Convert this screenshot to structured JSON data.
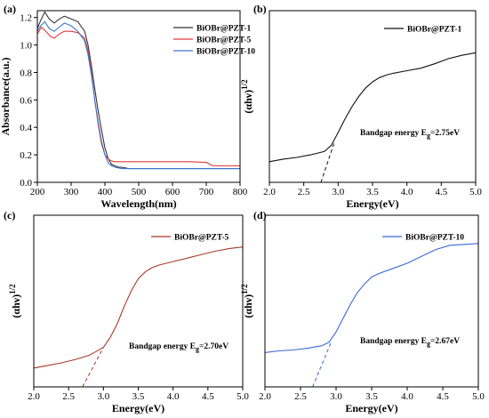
{
  "chart_data": [
    {
      "panel": "(a)",
      "type": "line",
      "xlabel": "Wavelength(nm)",
      "ylabel": "Absorbance(a.u.)",
      "xlim": [
        200,
        800
      ],
      "ylim": [
        0.0,
        1.25
      ],
      "xticks": [
        "200",
        "300",
        "400",
        "500",
        "600",
        "700",
        "800"
      ],
      "yticks": [
        "0.0",
        "0.2",
        "0.4",
        "0.6",
        "0.8",
        "1.0",
        "1.2"
      ],
      "legend_position": "top-right",
      "series": [
        {
          "name": "BiOBr@PZT-1",
          "color": "#333333",
          "x": [
            200,
            210,
            222,
            235,
            250,
            265,
            280,
            300,
            320,
            340,
            350,
            360,
            370,
            380,
            390,
            400,
            410,
            420,
            430,
            440,
            450,
            470,
            500,
            550,
            600,
            650,
            700,
            750,
            800
          ],
          "y": [
            1.12,
            1.18,
            1.24,
            1.19,
            1.16,
            1.19,
            1.21,
            1.19,
            1.17,
            1.1,
            1.0,
            0.85,
            0.68,
            0.52,
            0.38,
            0.25,
            0.17,
            0.13,
            0.12,
            0.11,
            0.11,
            0.1,
            0.1,
            0.1,
            0.1,
            0.1,
            0.1,
            0.1,
            0.1
          ]
        },
        {
          "name": "BiOBr@PZT-5",
          "color": "#e03a3a",
          "x": [
            200,
            212,
            225,
            240,
            250,
            265,
            280,
            300,
            320,
            340,
            350,
            360,
            370,
            380,
            390,
            400,
            410,
            420,
            430,
            440,
            450,
            470,
            500,
            550,
            600,
            650,
            700,
            720,
            750,
            800
          ],
          "y": [
            1.08,
            1.13,
            1.1,
            1.06,
            1.05,
            1.08,
            1.1,
            1.1,
            1.09,
            1.05,
            0.96,
            0.8,
            0.6,
            0.42,
            0.28,
            0.2,
            0.17,
            0.155,
            0.15,
            0.15,
            0.15,
            0.15,
            0.15,
            0.15,
            0.15,
            0.15,
            0.145,
            0.12,
            0.12,
            0.12
          ]
        },
        {
          "name": "BiOBr@PZT-10",
          "color": "#3a78d0",
          "x": [
            200,
            210,
            222,
            235,
            250,
            265,
            280,
            300,
            320,
            340,
            350,
            360,
            370,
            380,
            390,
            400,
            410,
            420,
            430,
            440,
            450,
            470,
            500,
            550,
            600,
            650,
            700,
            750,
            800
          ],
          "y": [
            1.1,
            1.14,
            1.17,
            1.12,
            1.1,
            1.13,
            1.16,
            1.14,
            1.1,
            1.03,
            0.93,
            0.78,
            0.6,
            0.44,
            0.3,
            0.2,
            0.14,
            0.12,
            0.11,
            0.105,
            0.1,
            0.1,
            0.1,
            0.1,
            0.1,
            0.1,
            0.1,
            0.1,
            0.1
          ]
        }
      ]
    },
    {
      "panel": "(b)",
      "type": "line",
      "xlabel": "Energy(eV)",
      "ylabel": "(αhν)",
      "ylabel_sup": "1/2",
      "xlim": [
        2.0,
        5.0
      ],
      "ylim": [
        0,
        1.0
      ],
      "xticks": [
        "2.0",
        "2.5",
        "3.0",
        "3.5",
        "4.0",
        "4.5",
        "5.0"
      ],
      "yticks": [],
      "legend_position": "top-right",
      "annotation": {
        "prefix": "Bandgap energy E",
        "sub": "g",
        "suffix": "=2.75eV",
        "bandgap": 2.75
      },
      "series": [
        {
          "name": "BiOBr@PZT-1",
          "color": "#111111",
          "x": [
            2.0,
            2.2,
            2.4,
            2.6,
            2.8,
            2.9,
            3.0,
            3.1,
            3.2,
            3.3,
            3.4,
            3.5,
            3.6,
            3.7,
            3.8,
            4.0,
            4.2,
            4.4,
            4.6,
            4.8,
            5.0
          ],
          "y": [
            0.12,
            0.135,
            0.145,
            0.16,
            0.18,
            0.215,
            0.29,
            0.37,
            0.44,
            0.5,
            0.55,
            0.585,
            0.61,
            0.625,
            0.635,
            0.65,
            0.665,
            0.69,
            0.72,
            0.74,
            0.755
          ]
        }
      ],
      "tangent": {
        "x": [
          2.75,
          2.95
        ],
        "y": [
          0.0,
          0.24
        ]
      }
    },
    {
      "panel": "(c)",
      "type": "line",
      "xlabel": "Energy(eV)",
      "ylabel": "(αhν)",
      "ylabel_sup": "1/2",
      "xlim": [
        2.0,
        5.0
      ],
      "ylim": [
        0,
        1.0
      ],
      "xticks": [
        "2.0",
        "2.5",
        "3.0",
        "3.5",
        "4.0",
        "4.5",
        "5.0"
      ],
      "yticks": [],
      "legend_position": "top-right",
      "annotation": {
        "prefix": "Bandgap energy E",
        "sub": "g",
        "suffix": "=2.70eV",
        "bandgap": 2.7
      },
      "series": [
        {
          "name": "BiOBr@PZT-5",
          "color": "#a83a28",
          "x": [
            2.0,
            2.2,
            2.4,
            2.6,
            2.8,
            3.0,
            3.1,
            3.2,
            3.3,
            3.4,
            3.5,
            3.6,
            3.7,
            3.8,
            4.0,
            4.2,
            4.4,
            4.6,
            4.8,
            5.0
          ],
          "y": [
            0.11,
            0.125,
            0.14,
            0.16,
            0.185,
            0.23,
            0.29,
            0.37,
            0.47,
            0.56,
            0.63,
            0.67,
            0.695,
            0.71,
            0.73,
            0.75,
            0.77,
            0.79,
            0.805,
            0.815
          ]
        }
      ],
      "tangent": {
        "x": [
          2.7,
          3.0
        ],
        "y": [
          0.0,
          0.23
        ]
      }
    },
    {
      "panel": "(d)",
      "type": "line",
      "xlabel": "Energy(eV)",
      "ylabel": "(αhν)",
      "ylabel_sup": "1/2",
      "xlim": [
        2.0,
        5.0
      ],
      "ylim": [
        0,
        1.0
      ],
      "xticks": [
        "2.0",
        "2.5",
        "3.0",
        "3.5",
        "4.0",
        "4.5",
        "5.0"
      ],
      "yticks": [],
      "legend_position": "top-right",
      "annotation": {
        "prefix": "Bandgap energy E",
        "sub": "g",
        "suffix": "=2.67eV",
        "bandgap": 2.67
      },
      "series": [
        {
          "name": "BiOBr@PZT-10",
          "color": "#3a68d8",
          "x": [
            2.0,
            2.2,
            2.4,
            2.6,
            2.8,
            2.9,
            3.0,
            3.1,
            3.2,
            3.3,
            3.4,
            3.5,
            3.6,
            3.8,
            4.0,
            4.2,
            4.4,
            4.6,
            4.8,
            5.0
          ],
          "y": [
            0.2,
            0.21,
            0.215,
            0.225,
            0.24,
            0.26,
            0.32,
            0.4,
            0.48,
            0.55,
            0.6,
            0.64,
            0.66,
            0.69,
            0.72,
            0.76,
            0.8,
            0.825,
            0.83,
            0.835
          ]
        }
      ],
      "tangent": {
        "x": [
          2.67,
          2.93
        ],
        "y": [
          0.0,
          0.26
        ]
      }
    }
  ]
}
